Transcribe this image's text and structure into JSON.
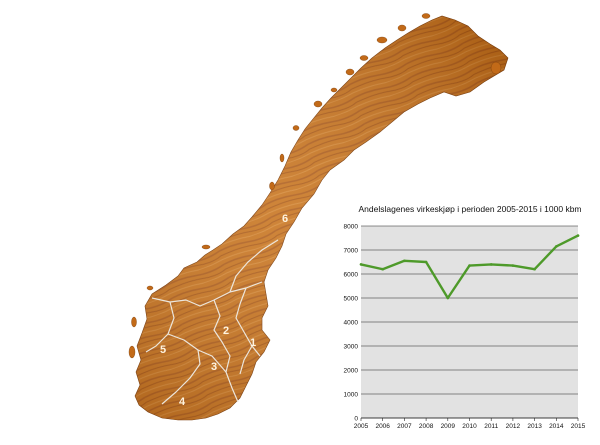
{
  "map": {
    "region_labels": [
      "1",
      "2",
      "3",
      "4",
      "5",
      "6"
    ],
    "colors": {
      "wood": "#c8741e",
      "wood_dark": "#8a4510",
      "border": "#e8e0d4"
    }
  },
  "chart_data": {
    "type": "line",
    "title": "Andelslagenes virkeskjøp i perioden 2005-2015 i 1000 kbm",
    "xlabel": "",
    "ylabel": "",
    "x": [
      2005,
      2006,
      2007,
      2008,
      2009,
      2010,
      2011,
      2012,
      2013,
      2014,
      2015
    ],
    "x_tick_labels": [
      "2005",
      "2006",
      "2007",
      "2008",
      "2009",
      "2010",
      "2011",
      "2012",
      "2013",
      "2014",
      "2015"
    ],
    "y_ticks": [
      0,
      1000,
      2000,
      3000,
      4000,
      5000,
      6000,
      7000,
      8000
    ],
    "y_tick_labels": [
      "0",
      "1000",
      "2000",
      "3000",
      "4000",
      "5000",
      "6000",
      "7000",
      "8000"
    ],
    "ylim": [
      0,
      8000
    ],
    "grid": true,
    "series": [
      {
        "values": [
          6400,
          6200,
          6550,
          6500,
          5000,
          6350,
          6400,
          6350,
          6200,
          7150,
          7600
        ],
        "color": "#4e9a2a"
      }
    ],
    "plot_background": "#e2e2e2"
  }
}
